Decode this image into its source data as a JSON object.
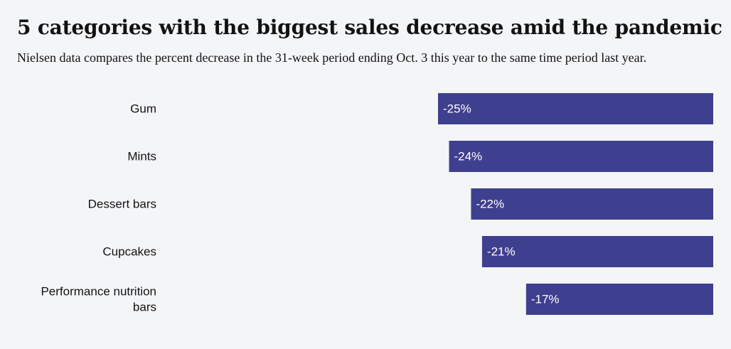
{
  "header": {
    "title": "5 categories with the biggest sales decrease amid the pandemic",
    "subtitle": "Nielsen data compares the percent decrease in the 31-week period ending Oct. 3 this year to the same time period last year."
  },
  "colors": {
    "bar": "#3f3f8f",
    "background": "#f4f5f7"
  },
  "chart_data": {
    "type": "bar",
    "orientation": "horizontal",
    "title": "5 categories with the biggest sales decrease amid the pandemic",
    "subtitle": "Nielsen data compares the percent decrease in the 31-week period ending Oct. 3 this year to the same time period last year.",
    "categories": [
      [
        "Gum"
      ],
      [
        "Mints"
      ],
      [
        "Dessert bars"
      ],
      [
        "Cupcakes"
      ],
      [
        "Performance nutrition",
        "bars"
      ]
    ],
    "values": [
      -25,
      -24,
      -22,
      -21,
      -17
    ],
    "value_labels": [
      "-25%",
      "-24%",
      "-22%",
      "-21%",
      "-17%"
    ],
    "unit": "%",
    "xlim": [
      -25,
      0
    ],
    "grid": false,
    "legend": "none"
  }
}
